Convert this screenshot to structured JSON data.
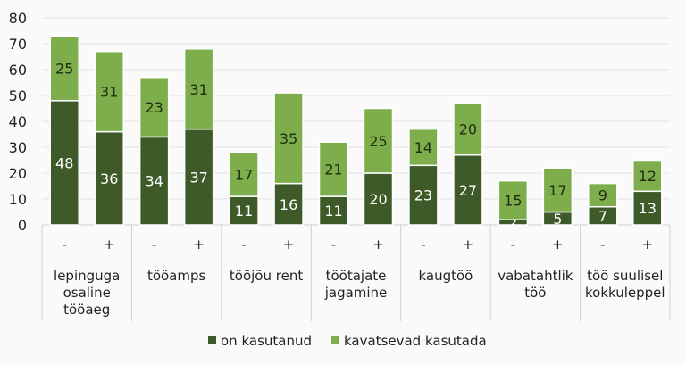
{
  "chart_data": {
    "type": "bar",
    "stacked": true,
    "ylim": [
      0,
      80
    ],
    "yticks": [
      0,
      10,
      20,
      30,
      40,
      50,
      60,
      70,
      80
    ],
    "grid": true,
    "legend_position": "bottom",
    "groups": [
      {
        "label": [
          "lepinguga",
          "osaline",
          "tööaeg"
        ],
        "bars": [
          {
            "sub": "-",
            "values": [
              48,
              25
            ]
          },
          {
            "sub": "+",
            "values": [
              36,
              31
            ]
          }
        ]
      },
      {
        "label": [
          "tööamps"
        ],
        "bars": [
          {
            "sub": "-",
            "values": [
              34,
              23
            ]
          },
          {
            "sub": "+",
            "values": [
              37,
              31
            ]
          }
        ]
      },
      {
        "label": [
          "tööjõu rent"
        ],
        "bars": [
          {
            "sub": "-",
            "values": [
              11,
              17
            ]
          },
          {
            "sub": "+",
            "values": [
              16,
              35
            ]
          }
        ]
      },
      {
        "label": [
          "töötajate",
          "jagamine"
        ],
        "bars": [
          {
            "sub": "-",
            "values": [
              11,
              21
            ]
          },
          {
            "sub": "+",
            "values": [
              20,
              25
            ]
          }
        ]
      },
      {
        "label": [
          "kaugtöö"
        ],
        "bars": [
          {
            "sub": "-",
            "values": [
              23,
              14
            ]
          },
          {
            "sub": "+",
            "values": [
              27,
              20
            ]
          }
        ]
      },
      {
        "label": [
          "vabatahtlik",
          "töö"
        ],
        "bars": [
          {
            "sub": "-",
            "values": [
              2,
              15
            ]
          },
          {
            "sub": "+",
            "values": [
              5,
              17
            ]
          }
        ]
      },
      {
        "label": [
          "töö suulisel",
          "kokkuleppel"
        ],
        "bars": [
          {
            "sub": "-",
            "values": [
              7,
              9
            ]
          },
          {
            "sub": "+",
            "values": [
              13,
              12
            ]
          }
        ]
      }
    ],
    "series": [
      {
        "name": "on kasutanud",
        "color": "#3e5a28"
      },
      {
        "name": "kavatsevad kasutada",
        "color": "#7dae4b"
      }
    ]
  }
}
